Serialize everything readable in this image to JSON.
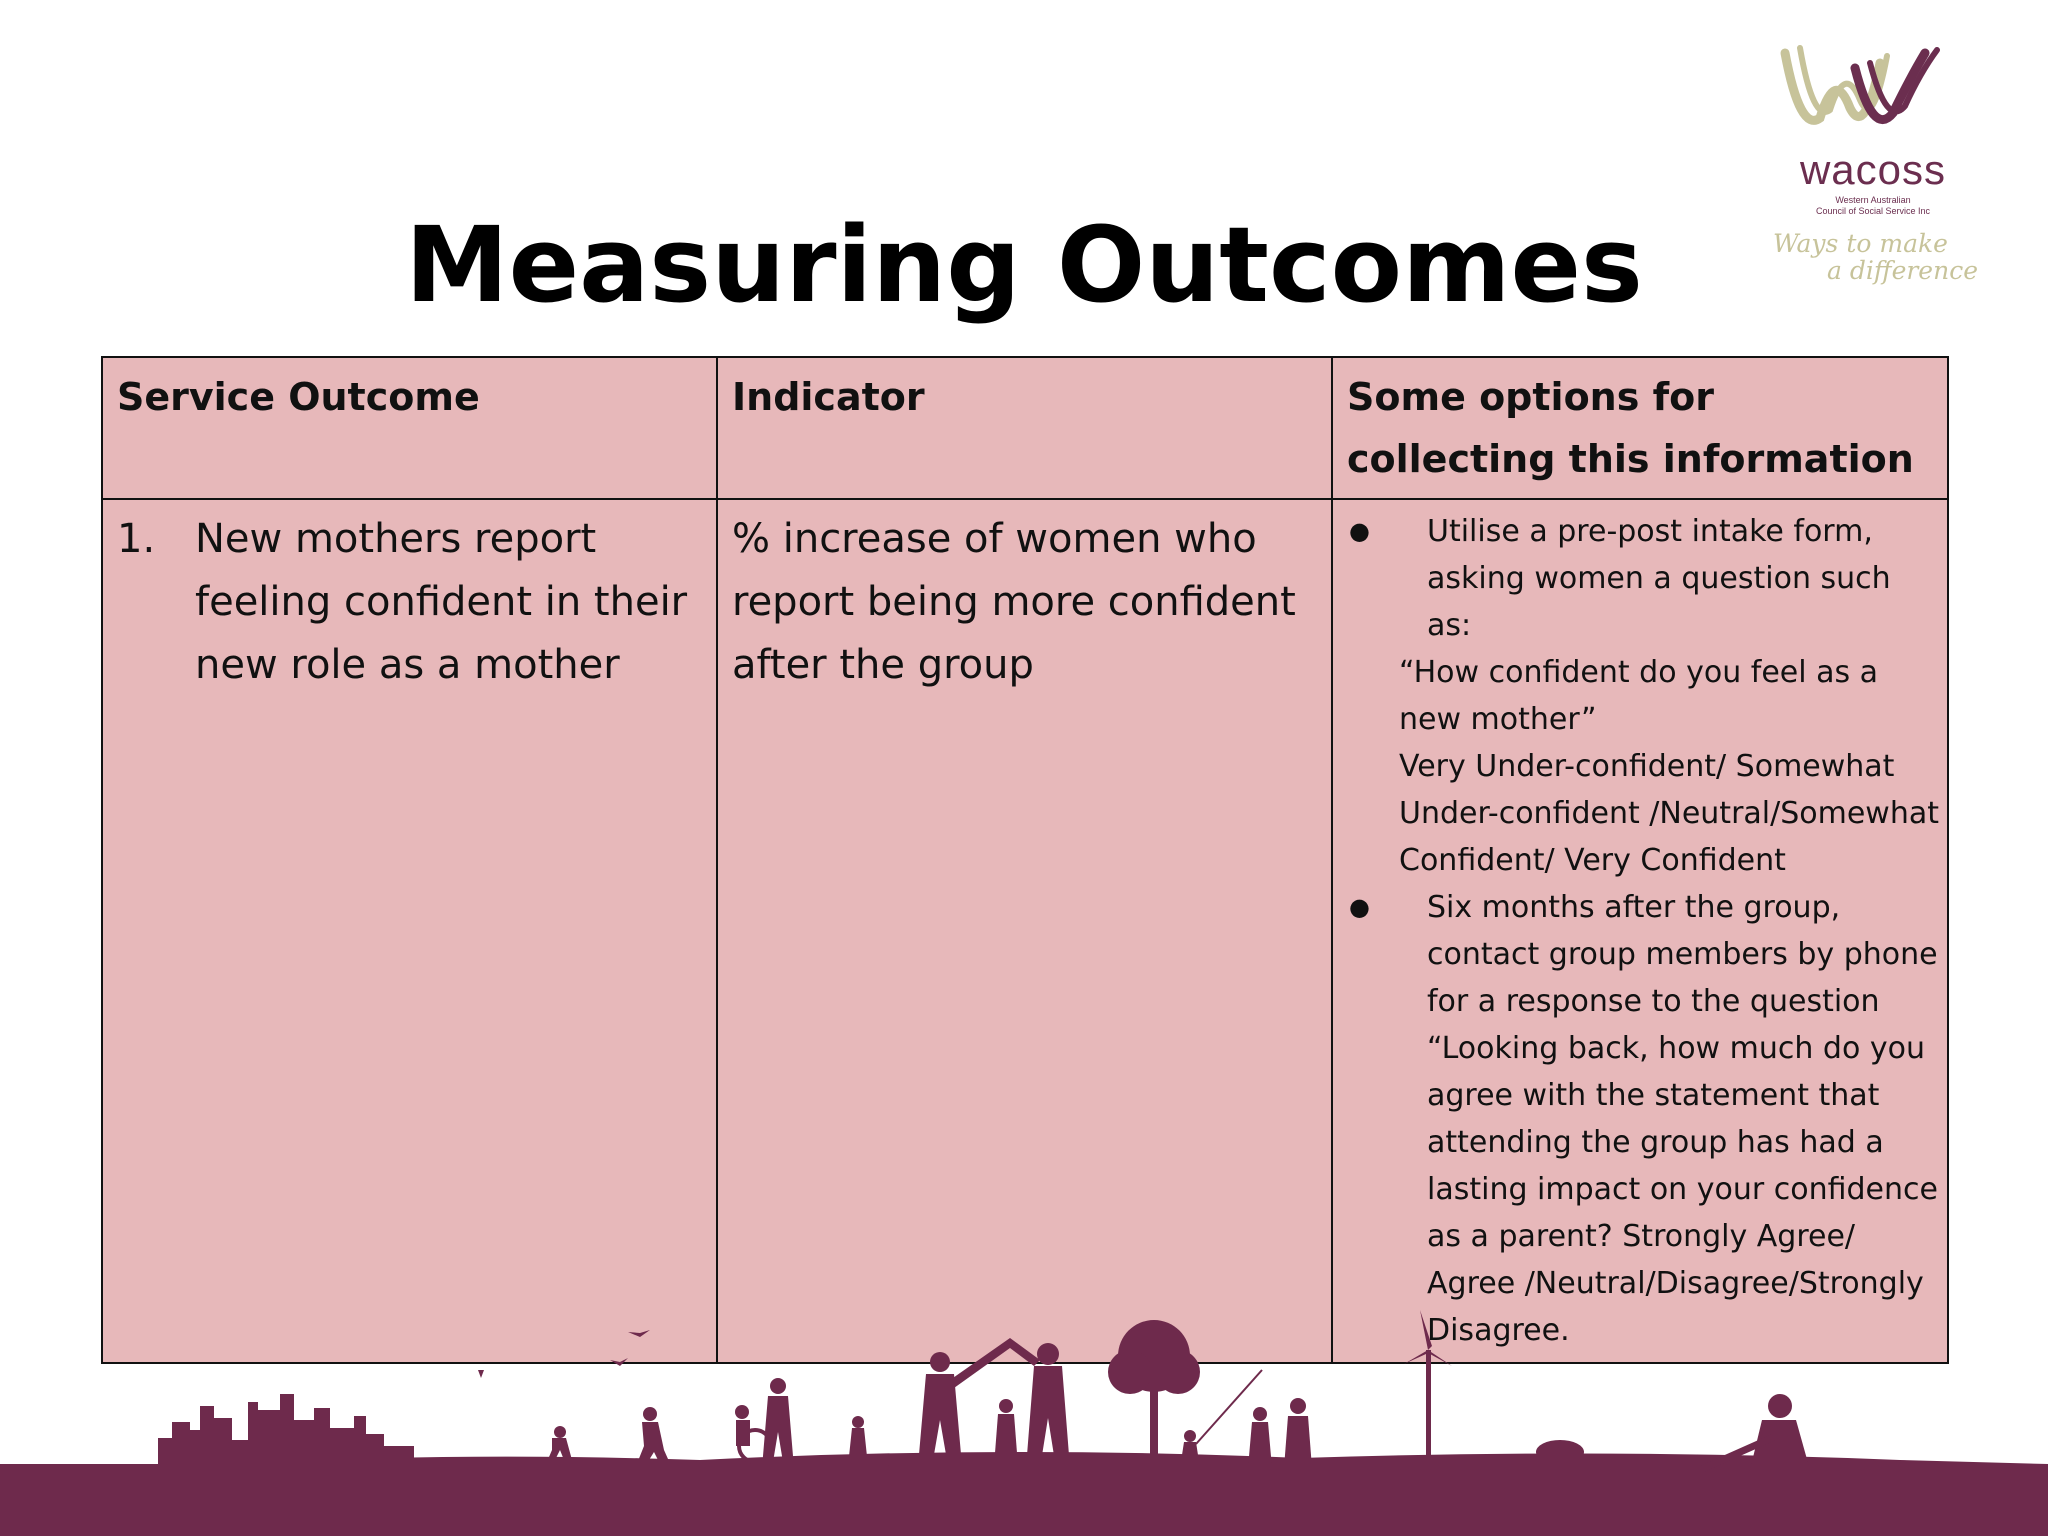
{
  "logo": {
    "brand": "wacoss",
    "subtitle_line1": "Western Australian",
    "subtitle_line2": "Council of Social Service Inc",
    "tagline_line1": "Ways to make",
    "tagline_line2": "a difference",
    "colors": {
      "primary": "#6b2e4f",
      "secondary": "#c7c39a"
    }
  },
  "title": "Measuring Outcomes",
  "table": {
    "headers": {
      "service_outcome": "Service Outcome",
      "indicator": "Indicator",
      "options": "Some options for collecting this information"
    },
    "row": {
      "number": "1.",
      "service_outcome": "New mothers report feeling confident in their new role as a mother",
      "indicator": "% increase of women who report being more confident after the group",
      "options": {
        "bullet1": "Utilise a pre-post intake form, asking women a question such as:",
        "question1": "“How confident do you feel as a new mother”",
        "scale1": "Very Under-confident/ Somewhat Under-confident /Neutral/Somewhat Confident/ Very Confident",
        "bullet2": "Six months after the group, contact group members by phone for a response to the question “Looking back, how much do you agree with the statement that attending the group has had a lasting impact on your confidence as a parent? Strongly Agree/ Agree /Neutral/Disagree/Strongly Disagree."
      }
    },
    "bullet_symbol": "●",
    "colors": {
      "cell_bg": "#e7b8ba",
      "border": "#111111"
    }
  },
  "footer": {
    "skyline_color": "#6e2a4c"
  }
}
